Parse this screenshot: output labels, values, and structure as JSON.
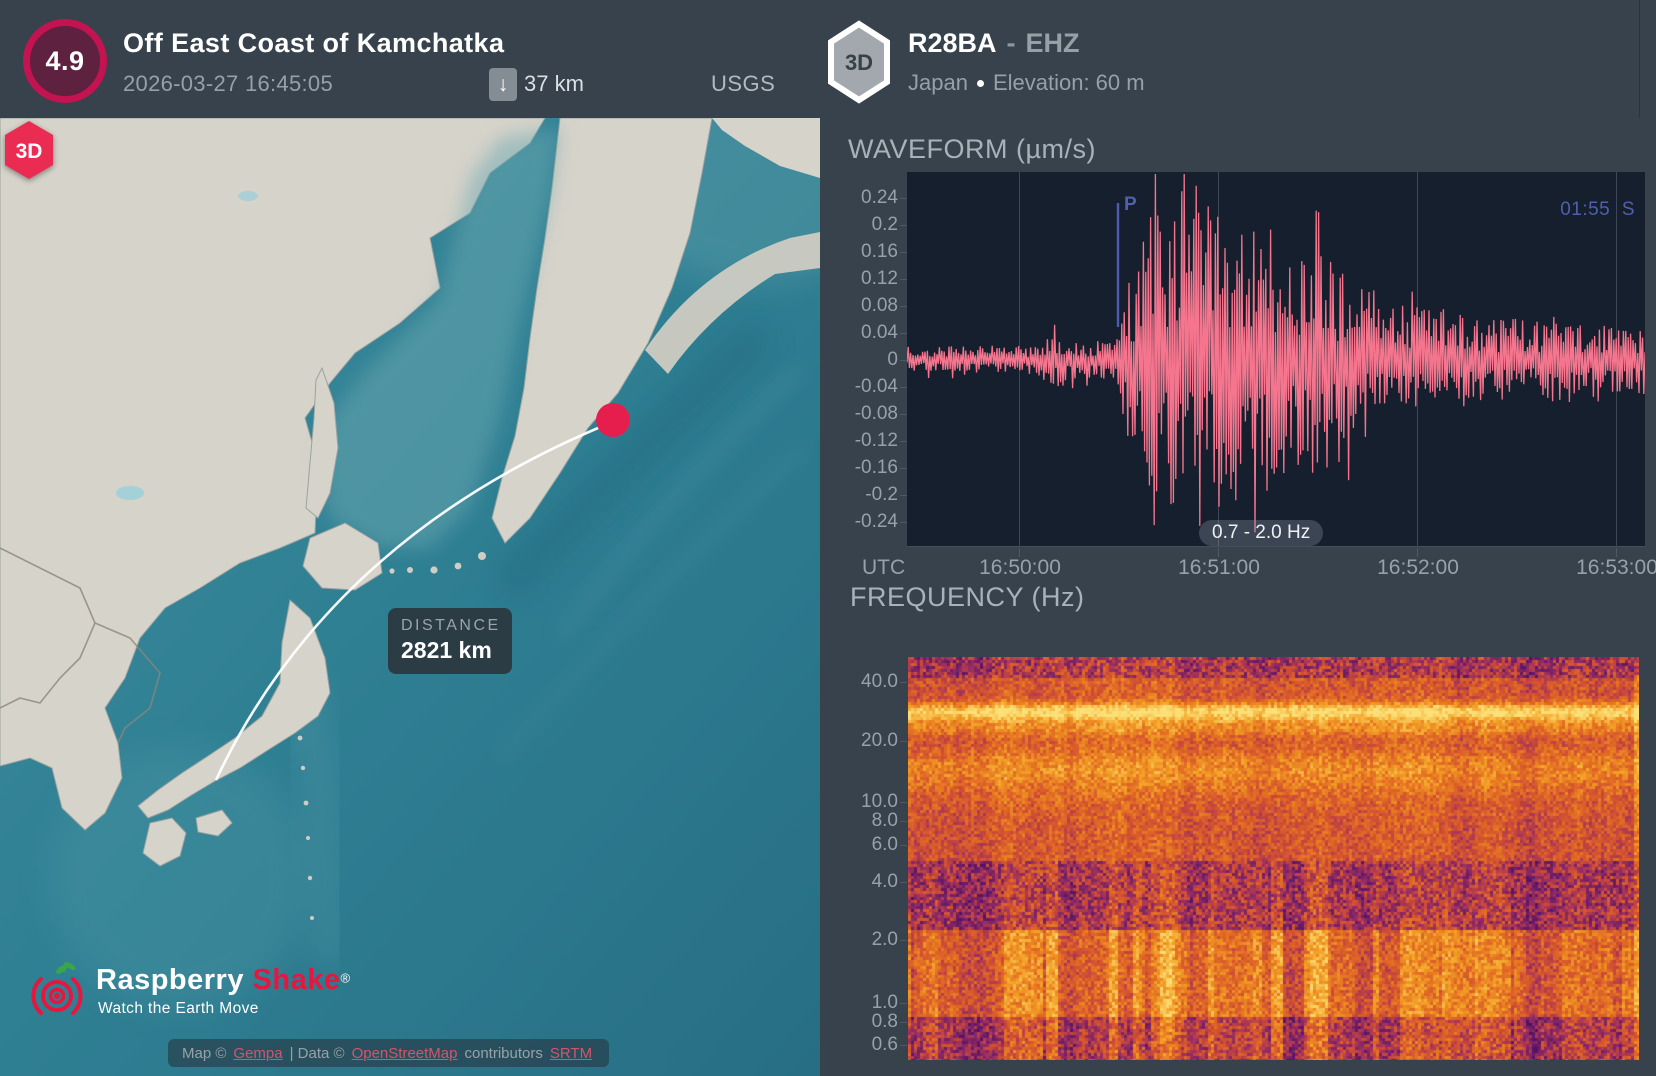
{
  "event": {
    "magnitude": "4.9",
    "title": "Off East Coast of Kamchatka",
    "datetime": "2026-03-27 16:45:05",
    "depth_icon": "↓",
    "depth": "37 km",
    "source": "USGS"
  },
  "station": {
    "badge": "3D",
    "code": "R28BA",
    "separator": "-",
    "channel": "EHZ",
    "country": "Japan",
    "elevation": "Elevation: 60 m"
  },
  "map": {
    "marker_label": "3D",
    "distance": {
      "label": "DISTANCE",
      "value": "2821 km"
    },
    "logo": {
      "word1": "Raspberry",
      "word2": "Shake",
      "reg": "®",
      "tagline": "Watch the Earth Move"
    },
    "attribution": {
      "map_prefix": "Map ©",
      "map_link": "Gempa",
      "data_prefix": "| Data ©",
      "data_link": "OpenStreetMap",
      "contributors": "contributors",
      "srtm_link": "SRTM"
    }
  },
  "colors": {
    "waveform": "#f4758d",
    "phase_marker": "#5060aa",
    "accent_red": "#e61e4e",
    "magnitude_ring": "#c31350"
  },
  "chart_data": [
    {
      "type": "line",
      "title": "WAVEFORM (µm/s)",
      "ylabel": "µm/s",
      "ylim": [
        -0.28,
        0.28
      ],
      "yticks": [
        "0.24",
        "0.2",
        "0.16",
        "0.12",
        "0.08",
        "0.04",
        "0",
        "-0.04",
        "-0.08",
        "-0.12",
        "-0.16",
        "-0.2",
        "-0.24"
      ],
      "xticks": [
        "16:50:00",
        "16:51:00",
        "16:52:00",
        "16:53:00"
      ],
      "x_axis_label": "UTC",
      "grid": "vertical",
      "bandpass_filter": "0.7 - 2.0 Hz",
      "markers": [
        {
          "label": "P",
          "time": "16:50:30"
        },
        {
          "label": "S",
          "eta": "01:55"
        }
      ],
      "series": [
        {
          "name": "EHZ ground velocity",
          "peak_amplitude": 0.27,
          "noise_amplitude": 0.02,
          "envelope": [
            [
              0,
              0.02
            ],
            [
              0.17,
              0.022
            ],
            [
              0.205,
              0.042
            ],
            [
              0.235,
              0.026
            ],
            [
              0.27,
              0.032
            ],
            [
              0.287,
              0.055
            ],
            [
              0.305,
              0.14
            ],
            [
              0.325,
              0.23
            ],
            [
              0.35,
              0.27
            ],
            [
              0.4,
              0.26
            ],
            [
              0.44,
              0.205
            ],
            [
              0.475,
              0.235
            ],
            [
              0.52,
              0.16
            ],
            [
              0.565,
              0.175
            ],
            [
              0.62,
              0.115
            ],
            [
              0.67,
              0.09
            ],
            [
              0.72,
              0.075
            ],
            [
              0.8,
              0.06
            ],
            [
              0.88,
              0.066
            ],
            [
              1,
              0.055
            ]
          ]
        }
      ]
    },
    {
      "type": "heatmap",
      "title": "FREQUENCY (Hz)",
      "yscale": "log",
      "ylim": [
        0.5,
        53
      ],
      "yticks": [
        "40.0",
        "20.0",
        "10.0",
        "8.0",
        "6.0",
        "4.0",
        "2.0",
        "1.0",
        "0.8",
        "0.6"
      ],
      "colormap": "inferno",
      "base_level": 0.6,
      "bands": [
        {
          "freq": 28,
          "sigma": 2.2,
          "boost": 0.4
        },
        {
          "freq": 23,
          "sigma": 1.4,
          "boost": 0.13
        },
        {
          "freq": 14.5,
          "sigma": 2.6,
          "boost": 0.16
        }
      ],
      "regions": [
        {
          "range": [
            42,
            53
          ],
          "delta": -0.12,
          "noise": 0.17,
          "streaky": false
        },
        {
          "range": [
            5,
            42
          ],
          "delta": 0.0,
          "noise": 0.11,
          "streaky": false
        },
        {
          "range": [
            2.3,
            5
          ],
          "delta": -0.11,
          "noise": 0.16,
          "streaky": true
        },
        {
          "range": [
            0.85,
            2.3
          ],
          "delta": 0.1,
          "noise": 0.12,
          "streaky": true
        },
        {
          "range": [
            0.5,
            0.85
          ],
          "delta": -0.06,
          "noise": 0.15,
          "streaky": true
        }
      ]
    }
  ]
}
